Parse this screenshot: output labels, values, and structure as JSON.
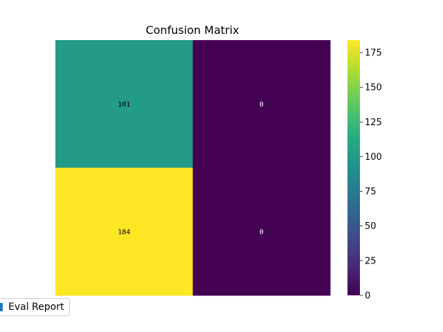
{
  "chart_data": {
    "type": "heatmap",
    "title": "Confusion Matrix",
    "xlabel": "",
    "ylabel": "",
    "matrix": [
      [
        101,
        0
      ],
      [
        184,
        0
      ]
    ],
    "colormap": "viridis",
    "colorbar": {
      "range": [
        0,
        184
      ],
      "ticks": [
        0,
        25,
        50,
        75,
        100,
        125,
        150,
        175
      ]
    },
    "legend": {
      "placement": "lower-left",
      "entries": [
        {
          "label": "Eval Report",
          "color": "#1f77b4"
        }
      ]
    }
  }
}
